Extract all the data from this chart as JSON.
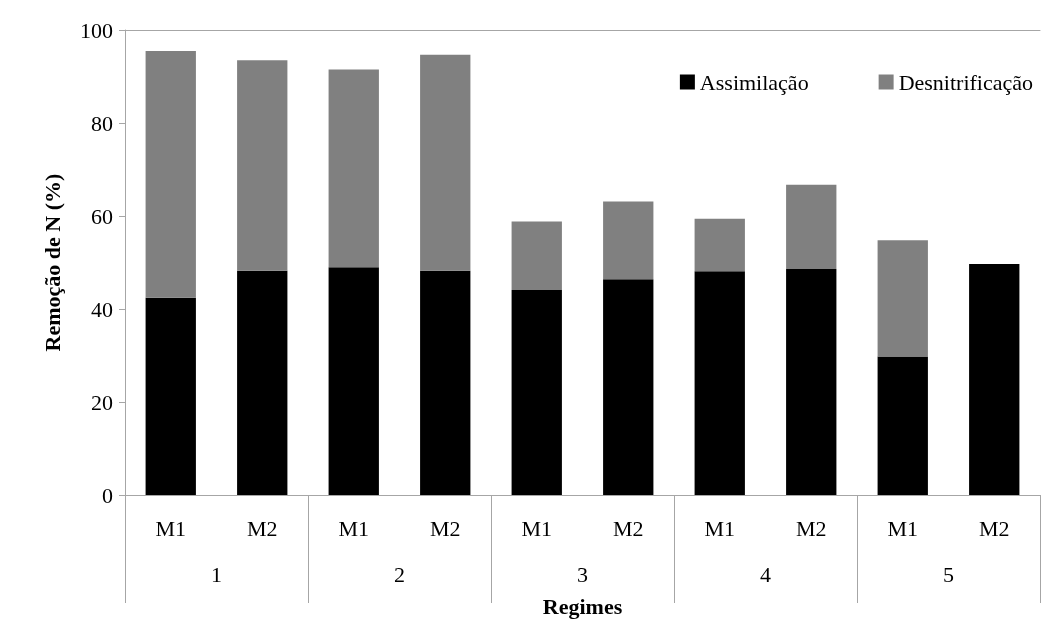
{
  "chart_data": {
    "type": "bar",
    "stacked": true,
    "xlabel": "Regimes",
    "ylabel": "Remoção de N (%)",
    "categories": [
      "M1",
      "M2",
      "M1",
      "M2",
      "M1",
      "M2",
      "M1",
      "M2",
      "M1",
      "M2"
    ],
    "annotations": [
      "1",
      "2",
      "3",
      "4",
      "5"
    ],
    "series": [
      {
        "name": "Assimilação",
        "color": "#000000",
        "values": [
          42.4,
          48.2,
          49.0,
          48.2,
          44.1,
          46.4,
          48.1,
          48.6,
          29.8,
          49.7
        ]
      },
      {
        "name": "Desnitrificação",
        "color": "#808080",
        "values": [
          53.1,
          45.3,
          42.5,
          46.5,
          14.7,
          16.7,
          11.3,
          18.1,
          25.0,
          null
        ]
      }
    ],
    "ylim": [
      0,
      100
    ],
    "yticks": [
      0,
      20,
      40,
      60,
      80,
      100
    ],
    "grid": false,
    "legend": "top right"
  }
}
